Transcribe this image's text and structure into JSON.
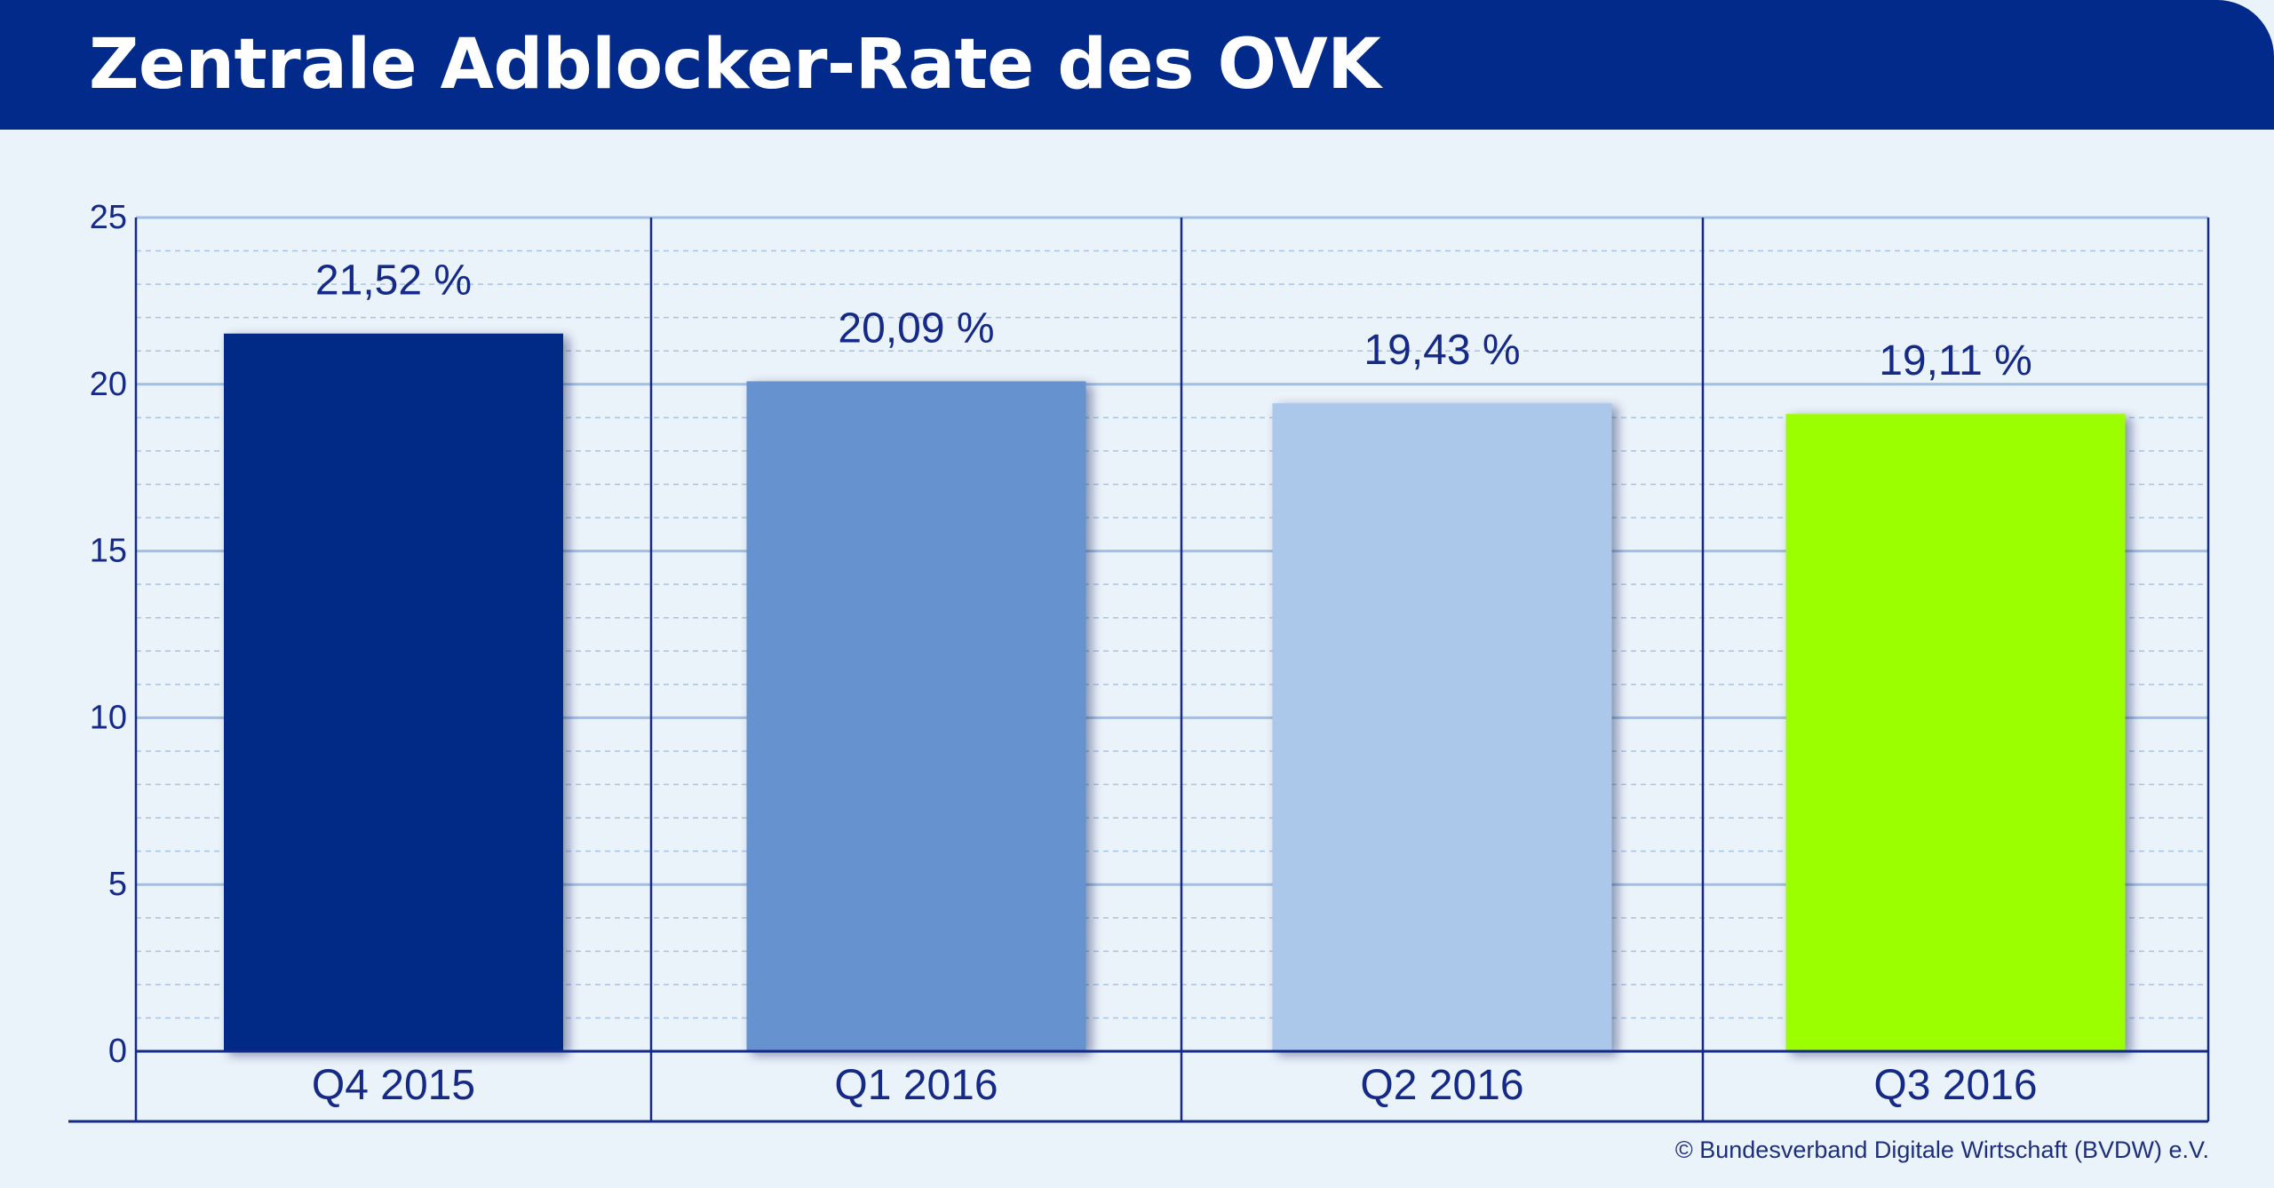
{
  "header": {
    "title": "Zentrale Adblocker-Rate des OVK"
  },
  "footer": {
    "copyright": "© Bundesverband Digitale Wirtschaft (BVDW) e.V."
  },
  "colors": {
    "header_background": "#012a8a",
    "page_background": "#eaf2fa",
    "axis_and_text": "#142a86",
    "gridline": "#9ec0e6"
  },
  "chart_data": {
    "type": "bar",
    "title": "Zentrale Adblocker-Rate des OVK",
    "xlabel": "",
    "ylabel": "",
    "ylim": [
      0,
      25
    ],
    "yticks": [
      "0",
      "5",
      "10",
      "15",
      "20",
      "25"
    ],
    "minor_gridlines_dashed": true,
    "grid": true,
    "legend": "none",
    "categories": [
      "Q4 2015",
      "Q1 2016",
      "Q2 2016",
      "Q3 2016"
    ],
    "values": [
      21.52,
      20.09,
      19.43,
      19.11
    ],
    "value_labels": [
      "21,52 %",
      "20,09 %",
      "19,43 %",
      "19,11 %"
    ],
    "bar_colors": [
      "#012a86",
      "#6693cf",
      "#abc7ea",
      "#9cff00"
    ]
  }
}
